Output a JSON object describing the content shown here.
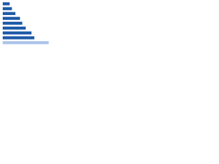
{
  "chart_data": {
    "type": "hbar",
    "categories": [
      null,
      null,
      null,
      null,
      null,
      null,
      null,
      null,
      null
    ],
    "values": [
      12,
      16,
      22,
      30,
      34,
      40,
      50,
      55,
      80
    ],
    "colors": [
      "#1f5ba8",
      "#1f5ba8",
      "#1f5ba8",
      "#1f5ba8",
      "#1f5ba8",
      "#1f5ba8",
      "#1f5ba8",
      "#1f5ba8",
      "#a9c4ea"
    ],
    "xlim": [
      0,
      100
    ],
    "grid": true
  }
}
